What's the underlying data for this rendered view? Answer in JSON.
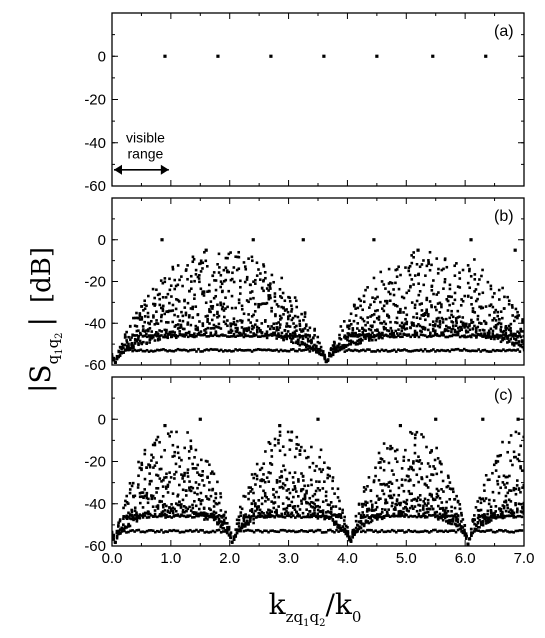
{
  "chart_data": {
    "type": "scatter",
    "x": {
      "label_main": "k",
      "label_sub": "zq",
      "label_sub_1": "1",
      "label_q": "q",
      "label_sub_2": "2",
      "label_div": "/k",
      "label_sub_0": "0",
      "lim": [
        0,
        7
      ],
      "ticks": [
        0,
        1,
        2,
        3,
        4,
        5,
        6,
        7
      ],
      "tick_labels": [
        "0.0",
        "1.0",
        "2.0",
        "3.0",
        "4.0",
        "5.0",
        "6.0",
        "7.0"
      ]
    },
    "y": {
      "label_main": "|S",
      "label_sub_q1": "q",
      "label_sub_1": "1",
      "label_sub_q2": "q",
      "label_sub_2": "2",
      "label_bar": "|",
      "label_unit": "[dB]",
      "lim": [
        -60,
        20
      ],
      "ticks": [
        0,
        -20,
        -40,
        -60
      ],
      "tick_labels": [
        "0",
        "-20",
        "-40",
        "-60"
      ]
    },
    "grid": false,
    "panels": [
      {
        "label": "(a)",
        "points": [
          [
            0.9,
            0
          ],
          [
            1.8,
            0
          ],
          [
            2.7,
            0
          ],
          [
            3.6,
            0
          ],
          [
            4.5,
            0
          ],
          [
            5.45,
            0
          ],
          [
            6.35,
            0
          ]
        ],
        "annotation": {
          "line1": "visible",
          "line2": "range",
          "x_range": [
            0,
            1
          ]
        }
      },
      {
        "label": "(b)",
        "period": 3.6,
        "peaks": [
          [
            0.85,
            0
          ],
          [
            1.6,
            -5
          ],
          [
            2.4,
            0
          ],
          [
            3.25,
            0
          ],
          [
            4.45,
            0
          ],
          [
            5.2,
            -5
          ],
          [
            6.1,
            0
          ],
          [
            6.85,
            -5
          ]
        ]
      },
      {
        "label": "(c)",
        "period": 2.0,
        "peaks": [
          [
            0.9,
            -3
          ],
          [
            1.5,
            0
          ],
          [
            2.85,
            -3
          ],
          [
            3.5,
            0
          ],
          [
            4.9,
            -3
          ],
          [
            5.5,
            0
          ],
          [
            6.3,
            0
          ],
          [
            6.9,
            0
          ]
        ]
      }
    ]
  }
}
